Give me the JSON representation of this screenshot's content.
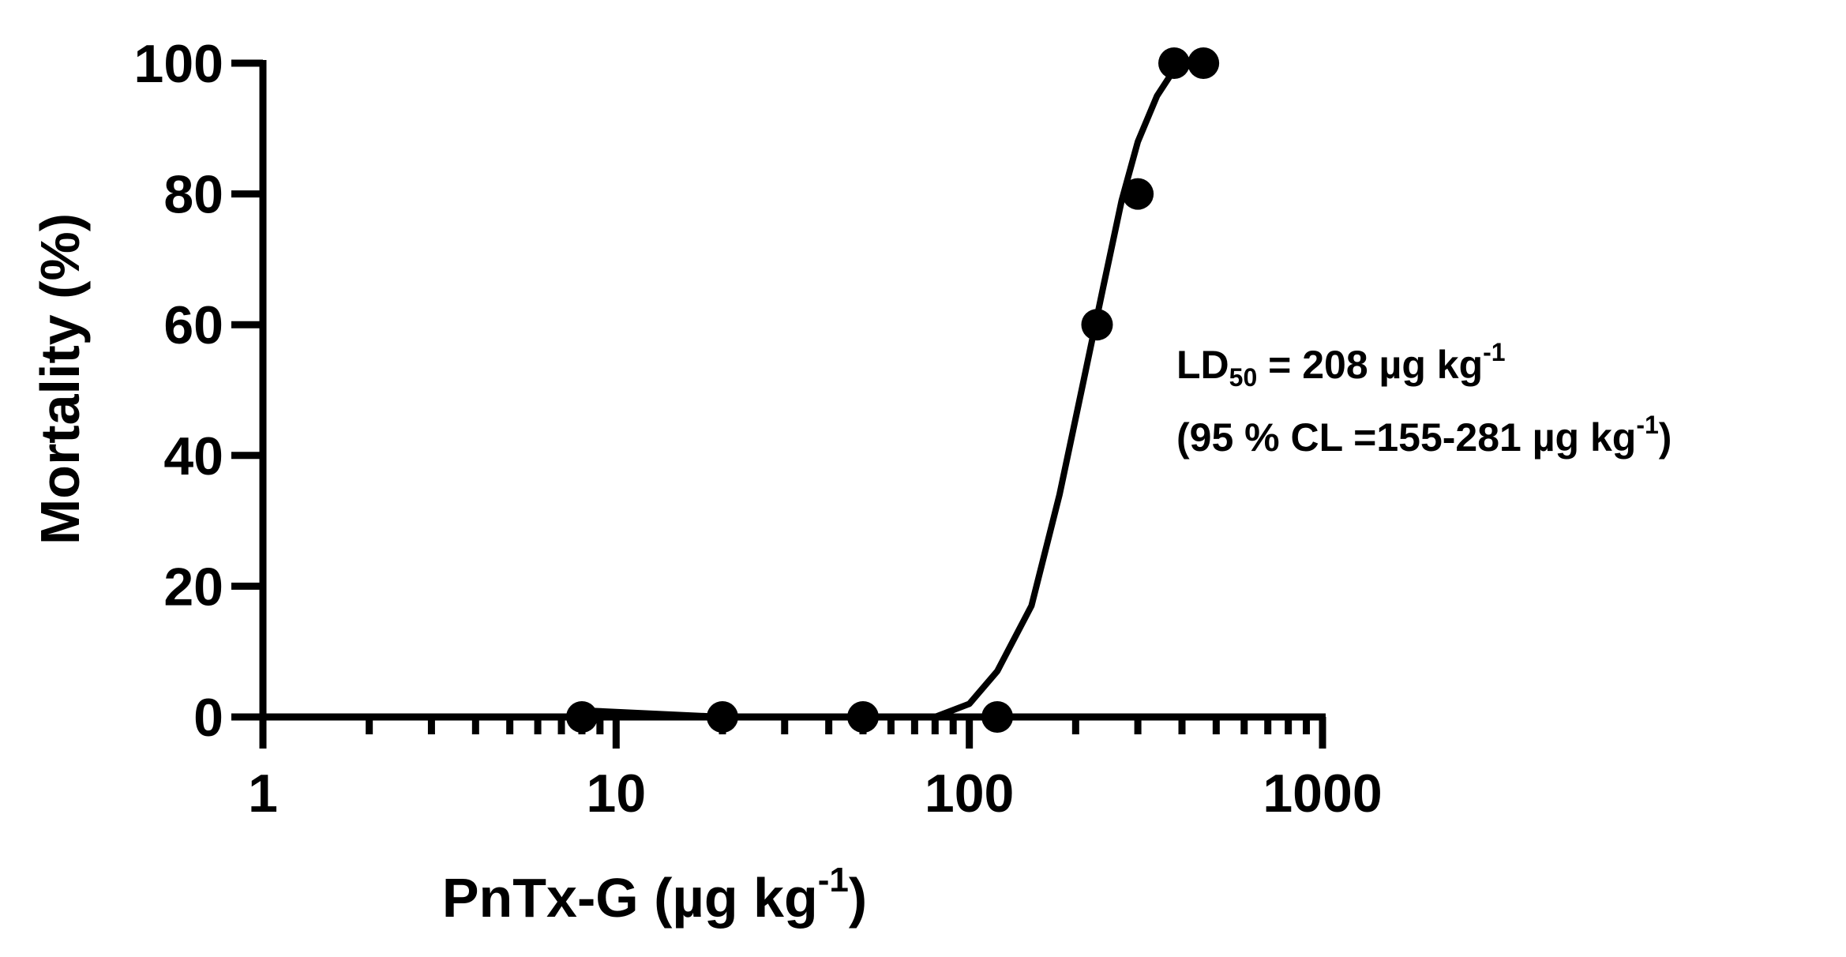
{
  "chart_data": {
    "type": "scatter",
    "xscale": "log",
    "xlim": [
      1,
      1000
    ],
    "ylim": [
      0,
      100
    ],
    "xticks": [
      "1",
      "10",
      "100",
      "1000"
    ],
    "yticks": [
      "0",
      "20",
      "40",
      "60",
      "80",
      "100"
    ],
    "xlabel_main": "PnTx-G (µg kg",
    "xlabel_sup": "-1",
    "xlabel_close": ")",
    "ylabel": "Mortality (%)",
    "points": [
      {
        "x": 8,
        "y": 0
      },
      {
        "x": 20,
        "y": 0
      },
      {
        "x": 50,
        "y": 0
      },
      {
        "x": 120,
        "y": 0
      },
      {
        "x": 230,
        "y": 60
      },
      {
        "x": 300,
        "y": 80
      },
      {
        "x": 380,
        "y": 100
      },
      {
        "x": 460,
        "y": 100
      }
    ],
    "fit_curve": {
      "type": "sigmoid",
      "ld50": 208,
      "x": [
        8,
        20,
        50,
        80,
        100,
        120,
        150,
        180,
        208,
        240,
        270,
        300,
        340,
        380,
        420
      ],
      "y": [
        1,
        0,
        0,
        0,
        2,
        7,
        17,
        34,
        50,
        66,
        79,
        88,
        95,
        99,
        100
      ]
    },
    "grid": false,
    "annotations": {
      "line1_prefix": "LD",
      "line1_sub": "50",
      "line1_rest": " = 208 µg kg",
      "line1_sup": "-1",
      "line2_main": "(95 % CL =155-281 µg kg",
      "line2_sup": "-1",
      "line2_close": ")"
    },
    "color": "#000000"
  }
}
